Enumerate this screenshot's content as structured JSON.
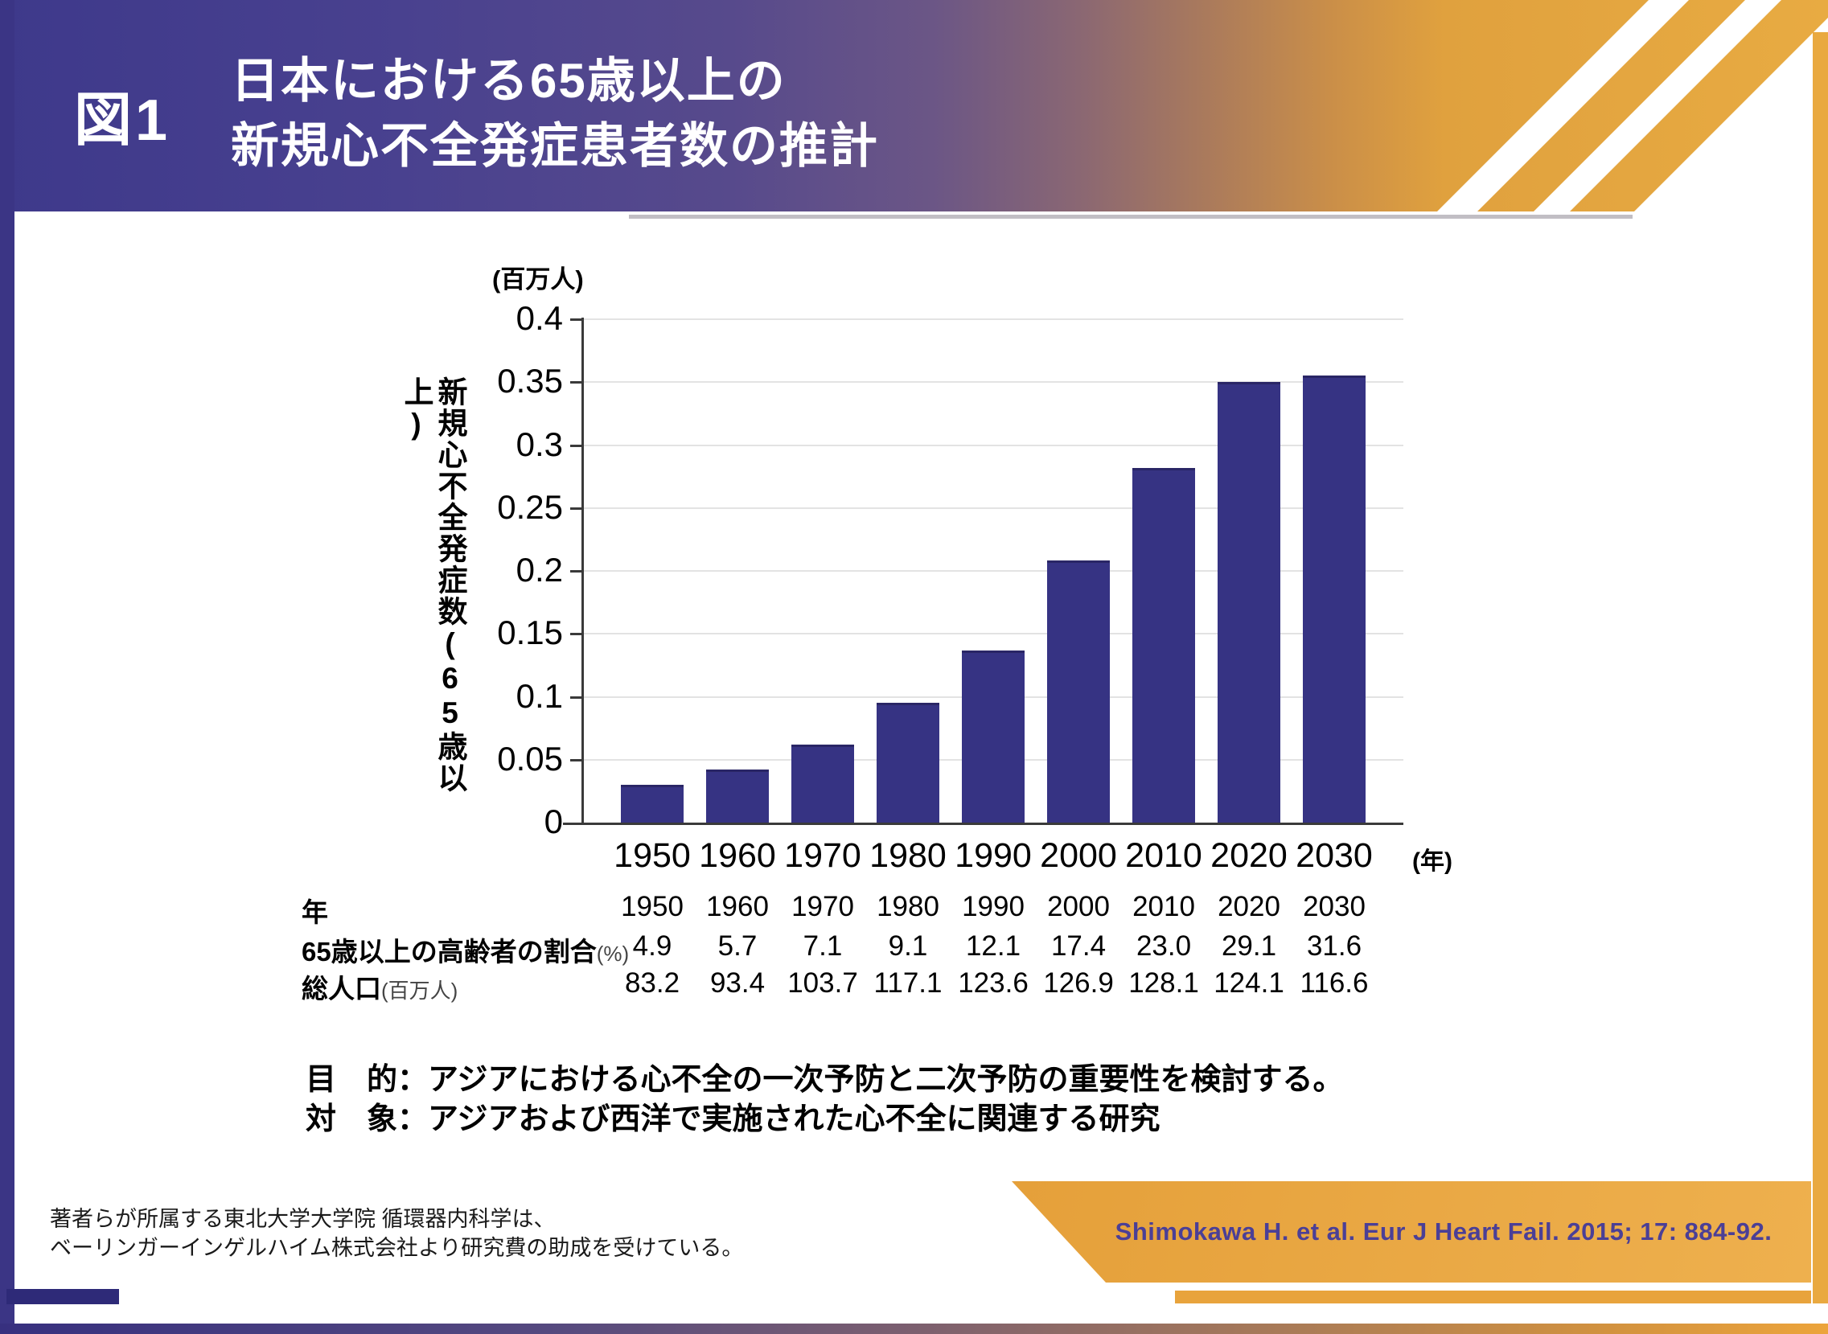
{
  "figure_tag": "図1",
  "title": {
    "line1": "日本における65歳以上の",
    "line2": "新規心不全発症患者数の推計"
  },
  "chart_data": {
    "type": "bar",
    "title": "日本における65歳以上の新規心不全発症患者数の推計",
    "y_unit_label": "(百万人)",
    "x_unit_label": "(年)",
    "ylabel": "新規心不全発症数(65歳以上)",
    "xlabel": "年",
    "categories": [
      "1950",
      "1960",
      "1970",
      "1980",
      "1990",
      "2000",
      "2010",
      "2020",
      "2030"
    ],
    "values": [
      0.03,
      0.042,
      0.062,
      0.095,
      0.137,
      0.208,
      0.282,
      0.35,
      0.355
    ],
    "ylim": [
      0,
      0.4
    ],
    "ytick_labels": [
      "0.4",
      "0.35",
      "0.3",
      "0.25",
      "0.2",
      "0.15",
      "0.1",
      "0.05",
      "0"
    ],
    "ytick_values": [
      0.4,
      0.35,
      0.3,
      0.25,
      0.2,
      0.15,
      0.1,
      0.05,
      0
    ],
    "grid": true,
    "legend": "none",
    "bar_color": "#363383"
  },
  "table": {
    "rows": [
      {
        "label": "年",
        "label_suffix": "",
        "values": [
          "1950",
          "1960",
          "1970",
          "1980",
          "1990",
          "2000",
          "2010",
          "2020",
          "2030"
        ]
      },
      {
        "label": "65歳以上の高齢者の割合",
        "label_suffix": "(%)",
        "values": [
          "4.9",
          "5.7",
          "7.1",
          "9.1",
          "12.1",
          "17.4",
          "23.0",
          "29.1",
          "31.6"
        ]
      },
      {
        "label": "総人口",
        "label_suffix": "(百万人)",
        "values": [
          "83.2",
          "93.4",
          "103.7",
          "117.1",
          "123.6",
          "126.9",
          "128.1",
          "124.1",
          "116.6"
        ]
      }
    ]
  },
  "purpose": {
    "objective": "目　的：アジアにおける心不全の一次予防と二次予防の重要性を検討する。",
    "subject": "対　象：アジアおよび西洋で実施された心不全に関連する研究"
  },
  "footnote": {
    "line1": "著者らが所属する東北大学大学院 循環器内科学は、",
    "line2": "ベーリンガーインゲルハイム株式会社より研究費の助成を受けている。"
  },
  "citation": "Shimokawa H. et al. Eur J Heart Fail. 2015; 17: 884-92.",
  "colors": {
    "bar": "#363383",
    "header_indigo": "#3e398b",
    "header_gold": "#e6a63f",
    "accent_gold": "#e8a33c",
    "accent_indigo": "#2e2a78",
    "citation_text": "#4b3f96"
  }
}
